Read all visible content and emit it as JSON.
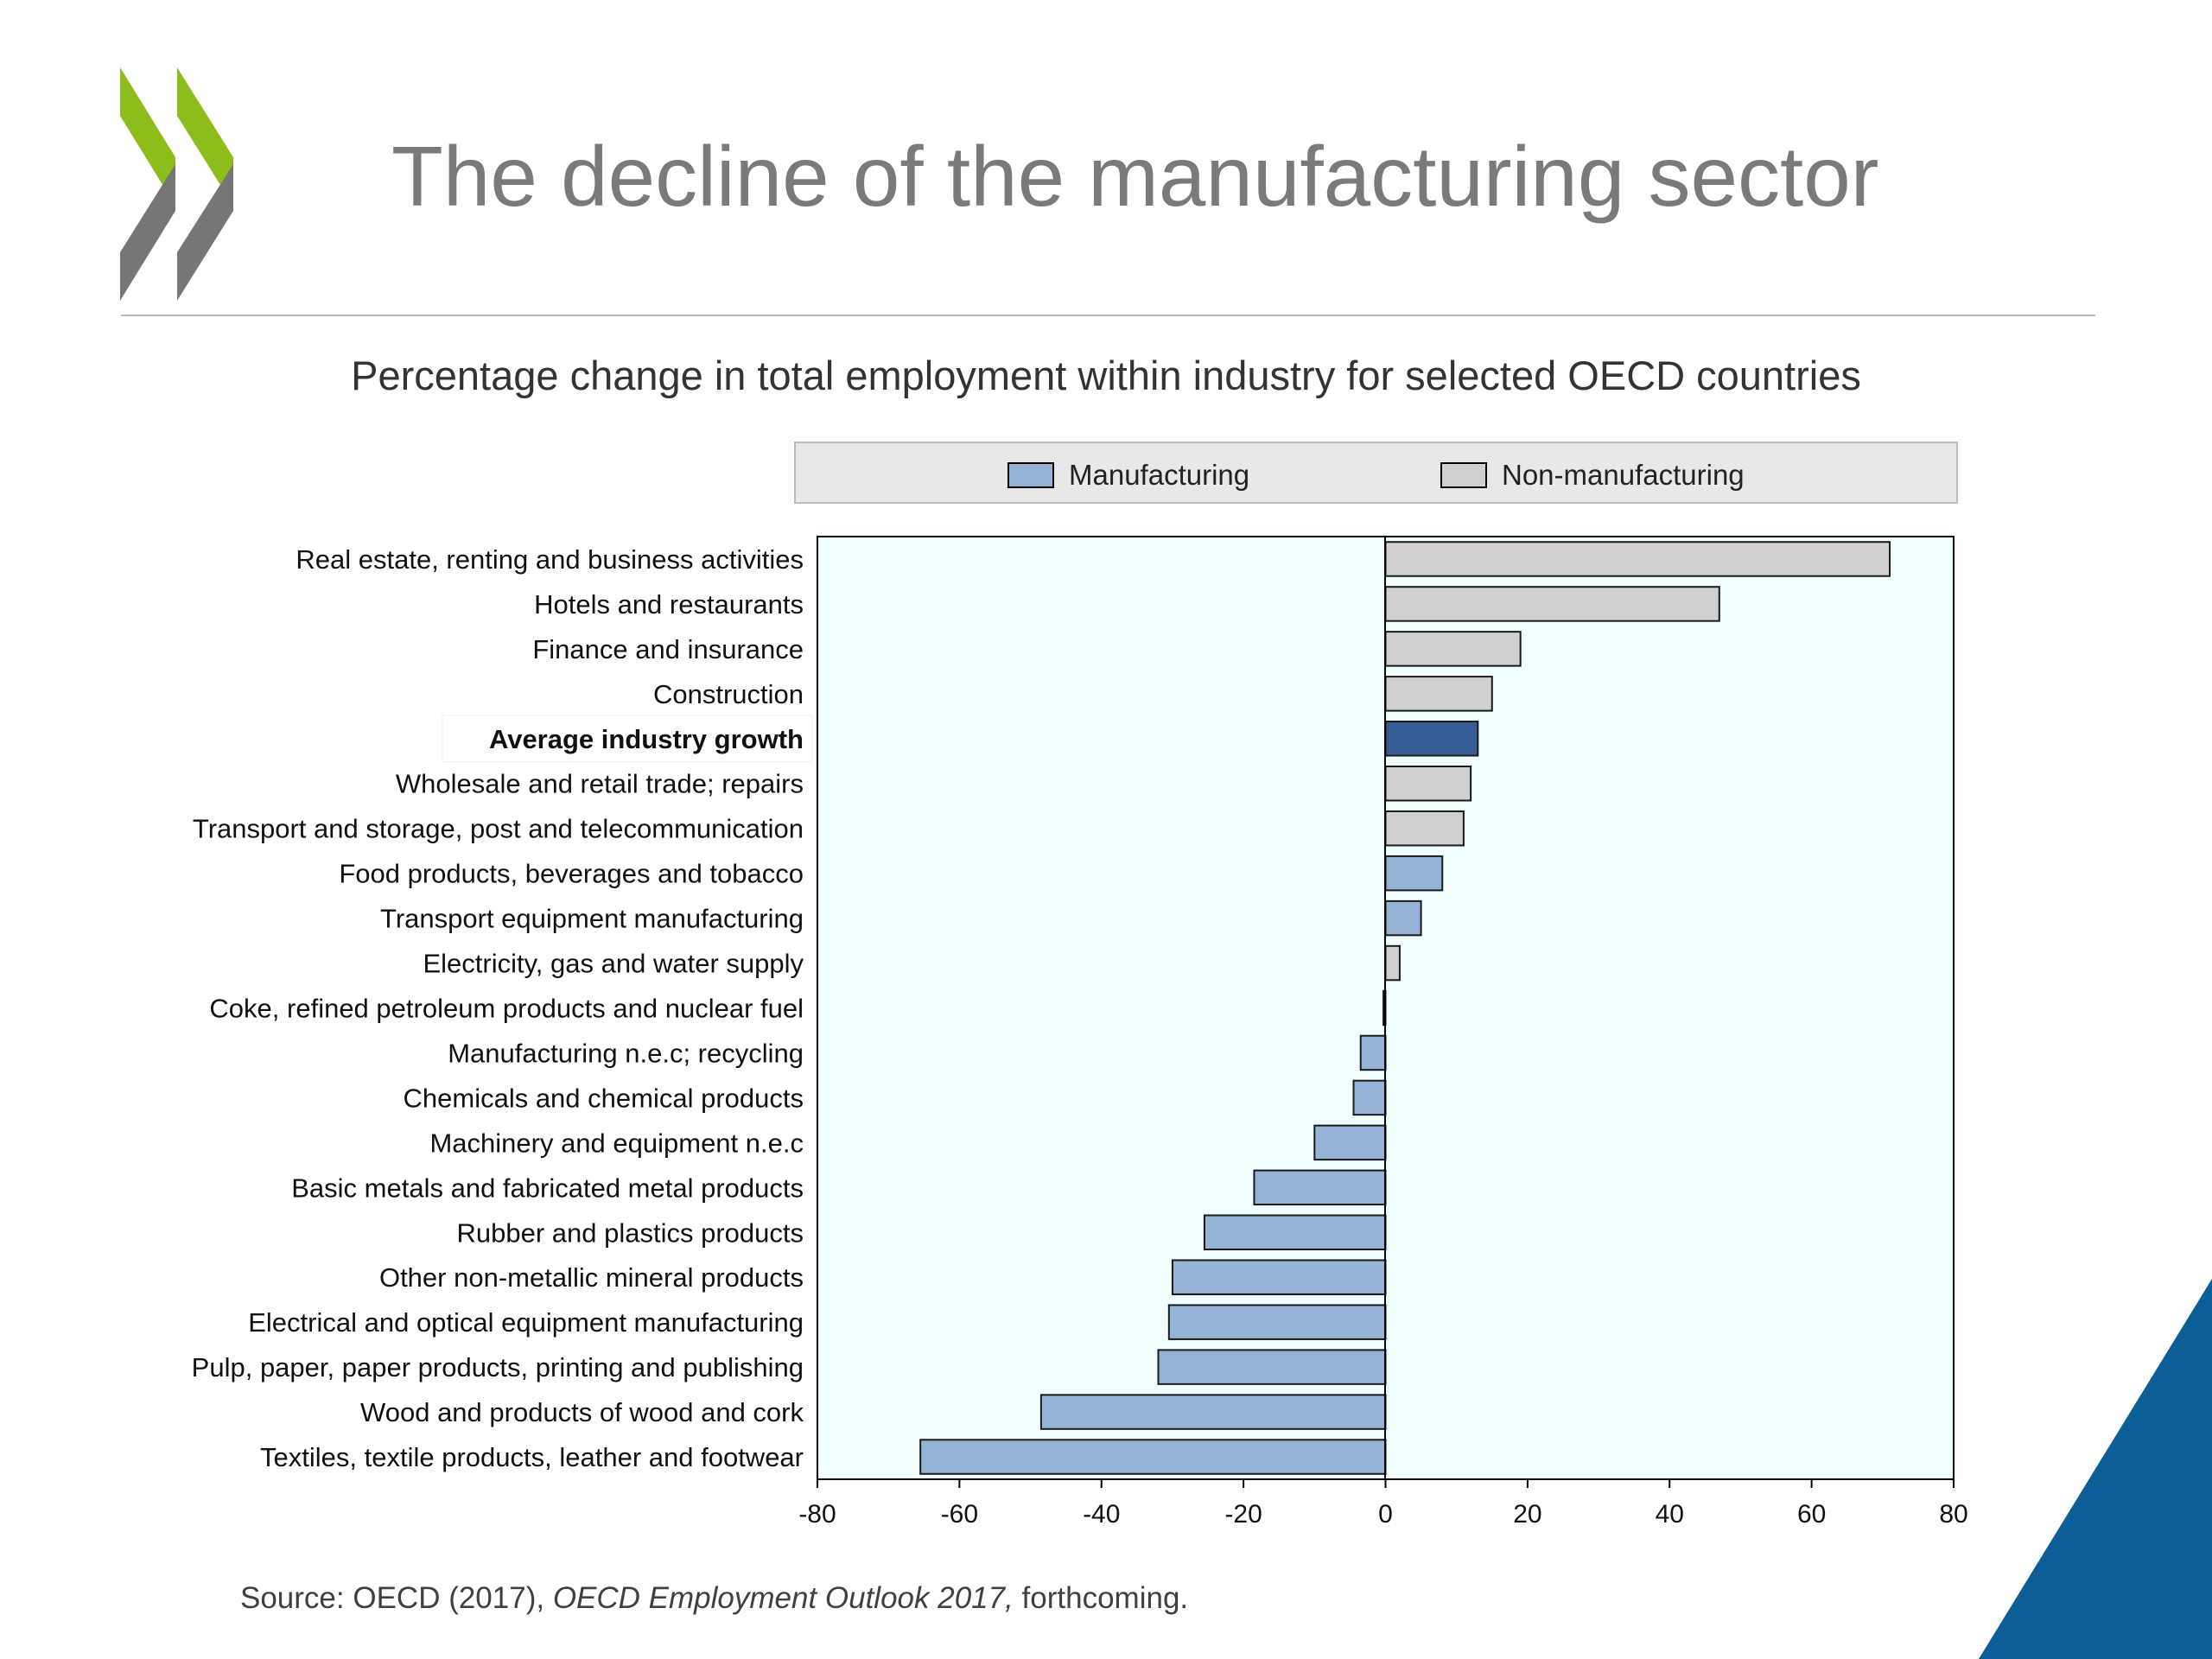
{
  "slide": {
    "title": "The decline of the manufacturing sector",
    "subtitle": "Percentage change in total employment within industry for selected OECD countries",
    "source_prefix": "Source: OECD (2017), ",
    "source_publication": "OECD Employment Outlook 2017,",
    "source_suffix": " forthcoming.",
    "brand_colors": {
      "logo_green": "#8cbd1a",
      "logo_gray": "#767676",
      "corner_blue": "#0b5e96"
    }
  },
  "chart_data": {
    "type": "bar",
    "orientation": "horizontal",
    "xlim": [
      -80,
      80
    ],
    "xticks": [
      -80,
      -60,
      -40,
      -20,
      0,
      20,
      40,
      60,
      80
    ],
    "grid": false,
    "legend_position": "top",
    "legend": [
      {
        "name": "Manufacturing",
        "color": "#95b3d7"
      },
      {
        "name": "Non-manufacturing",
        "color": "#d0d0d0"
      }
    ],
    "highlight_color": "#355e96",
    "categories": [
      "Real estate, renting and business activities",
      "Hotels and restaurants",
      "Finance and insurance",
      "Construction",
      "Average industry growth",
      "Wholesale and retail trade; repairs",
      "Transport and storage, post and telecommunication",
      "Food products, beverages and tobacco",
      "Transport equipment manufacturing",
      "Electricity, gas and water supply",
      "Coke, refined petroleum products and nuclear fuel",
      "Manufacturing n.e.c; recycling",
      "Chemicals and chemical products",
      "Machinery and equipment n.e.c",
      "Basic metals and fabricated metal products",
      "Rubber and plastics products",
      "Other non-metallic mineral products",
      "Electrical and optical equipment manufacturing",
      "Pulp, paper, paper products, printing and publishing",
      "Wood and products of wood and cork",
      "Textiles, textile products, leather and footwear"
    ],
    "values": [
      71,
      47,
      19,
      15,
      13,
      12,
      11,
      8,
      5,
      2,
      -0.3,
      -3.5,
      -4.5,
      -10,
      -18.5,
      -25.5,
      -30,
      -30.5,
      -32,
      -48.5,
      -65.5
    ],
    "groups": [
      "Non-manufacturing",
      "Non-manufacturing",
      "Non-manufacturing",
      "Non-manufacturing",
      "Average",
      "Non-manufacturing",
      "Non-manufacturing",
      "Manufacturing",
      "Manufacturing",
      "Non-manufacturing",
      "Manufacturing",
      "Manufacturing",
      "Manufacturing",
      "Manufacturing",
      "Manufacturing",
      "Manufacturing",
      "Manufacturing",
      "Manufacturing",
      "Manufacturing",
      "Manufacturing",
      "Manufacturing"
    ]
  }
}
